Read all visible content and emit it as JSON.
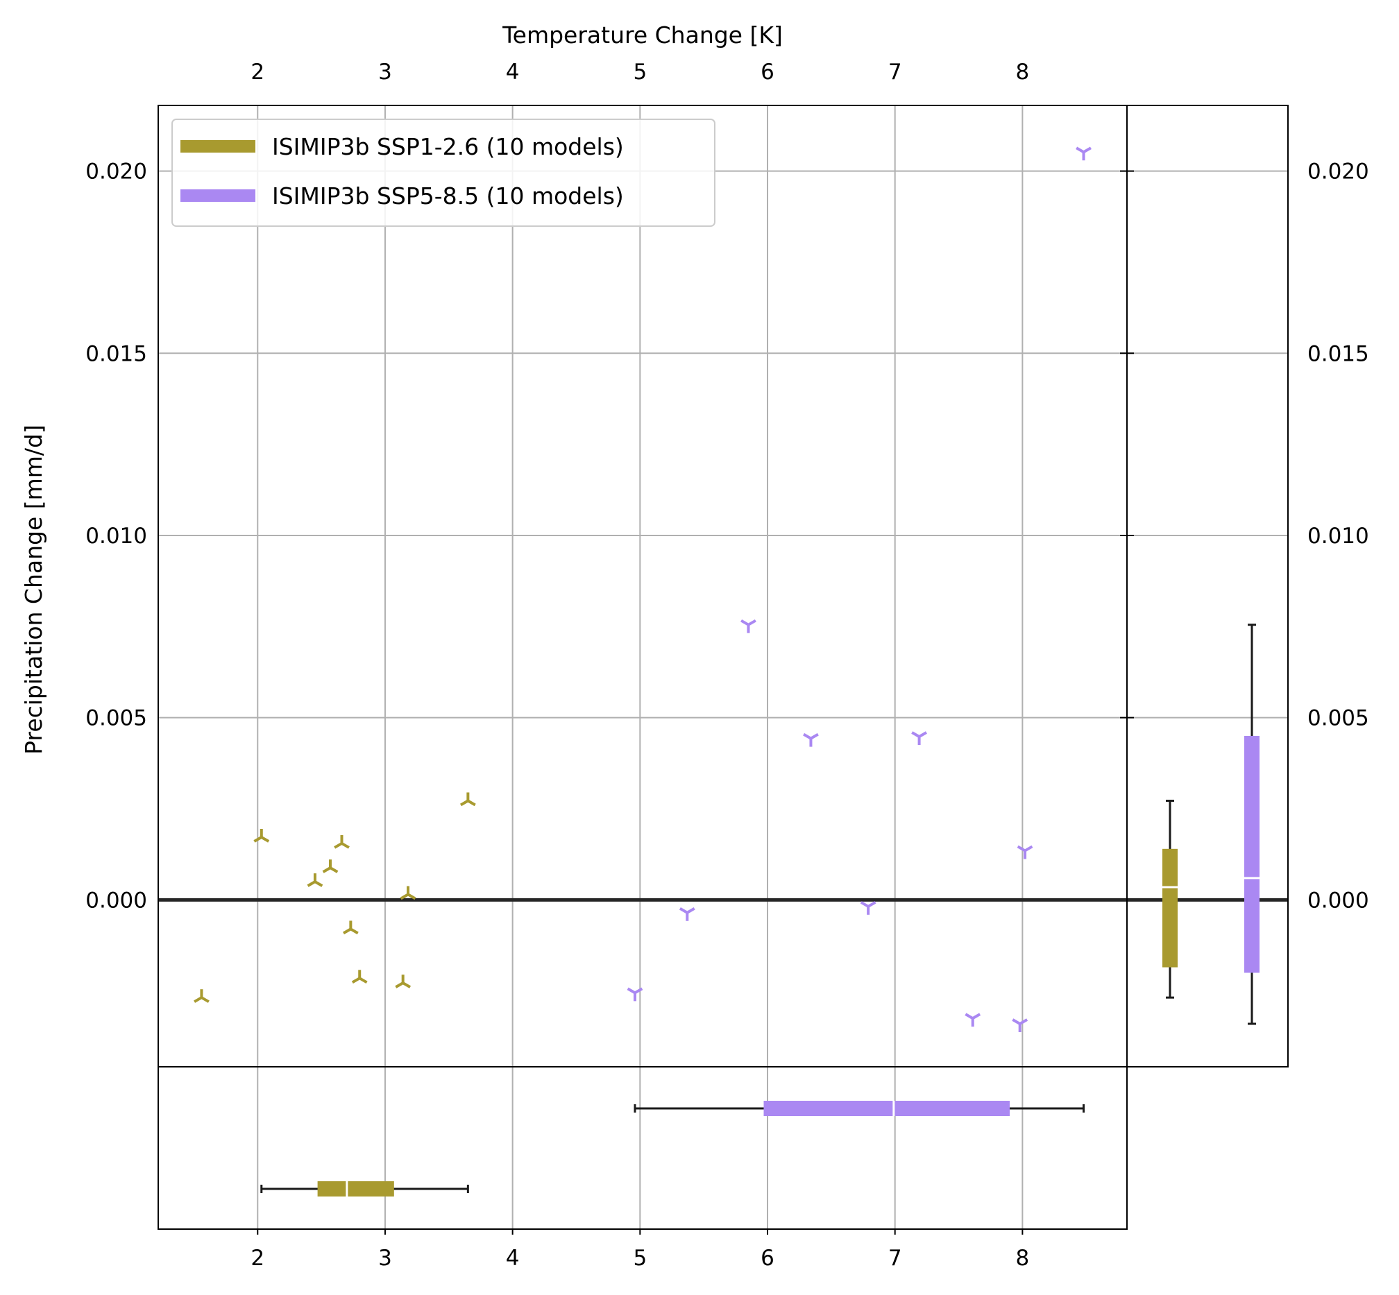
{
  "chart_data": {
    "type": "scatter",
    "title": "",
    "xlabel_top": "Temperature Change [K]",
    "ylabel": "Precipitation Change [mm/d]",
    "xlim": [
      1.22,
      8.82
    ],
    "ylim": [
      -0.00458,
      0.0218
    ],
    "x_ticks": [
      2,
      3,
      4,
      5,
      6,
      7,
      8
    ],
    "y_ticks": [
      0.0,
      0.005,
      0.01,
      0.015,
      0.02
    ],
    "y_tick_labels": [
      "0.000",
      "0.005",
      "0.010",
      "0.015",
      "0.020"
    ],
    "x_tick_labels": [
      "2",
      "3",
      "4",
      "5",
      "6",
      "7",
      "8"
    ],
    "grid": true,
    "zero_line": true,
    "legend_position": "top-left",
    "series": [
      {
        "name": "ISIMIP3b SSP1-2.6 (10 models)",
        "legend_label": "ISIMIP3b SSP1-2.6 (10 models)",
        "color": "#a89a2f",
        "marker": "tri-down",
        "points": [
          {
            "x": 1.56,
            "y": -0.00268
          },
          {
            "x": 2.03,
            "y": 0.00172
          },
          {
            "x": 2.45,
            "y": 0.0005
          },
          {
            "x": 2.57,
            "y": 0.00088
          },
          {
            "x": 2.66,
            "y": 0.00155
          },
          {
            "x": 2.73,
            "y": -0.0008
          },
          {
            "x": 2.8,
            "y": -0.00215
          },
          {
            "x": 3.14,
            "y": -0.00228
          },
          {
            "x": 3.18,
            "y": 0.00015
          },
          {
            "x": 3.65,
            "y": 0.00272
          }
        ],
        "box_x": {
          "min": 2.03,
          "q1": 2.47,
          "median": 2.7,
          "q3": 3.07,
          "max": 3.65
        },
        "box_y": {
          "min": -0.00268,
          "q1": -0.00185,
          "median": 0.00035,
          "q3": 0.0014,
          "max": 0.00272
        }
      },
      {
        "name": "ISIMIP3b SSP5-8.5 (10 models)",
        "legend_label": "ISIMIP3b SSP5-8.5 (10 models)",
        "color": "#aa88f2",
        "marker": "tri-up",
        "points": [
          {
            "x": 4.96,
            "y": -0.00255
          },
          {
            "x": 5.37,
            "y": -0.00035
          },
          {
            "x": 5.85,
            "y": 0.00755
          },
          {
            "x": 6.34,
            "y": 0.00443
          },
          {
            "x": 6.79,
            "y": -0.00018
          },
          {
            "x": 7.19,
            "y": 0.00448
          },
          {
            "x": 7.61,
            "y": -0.00325
          },
          {
            "x": 7.98,
            "y": -0.0034
          },
          {
            "x": 8.02,
            "y": 0.00135
          },
          {
            "x": 8.48,
            "y": 0.02052
          }
        ],
        "box_x": {
          "min": 4.96,
          "q1": 5.97,
          "median": 6.99,
          "q3": 7.9,
          "max": 8.48
        },
        "box_y": {
          "min": -0.0034,
          "q1": -0.002,
          "median": 0.0006,
          "q3": 0.0045,
          "max": 0.00755
        }
      }
    ]
  }
}
